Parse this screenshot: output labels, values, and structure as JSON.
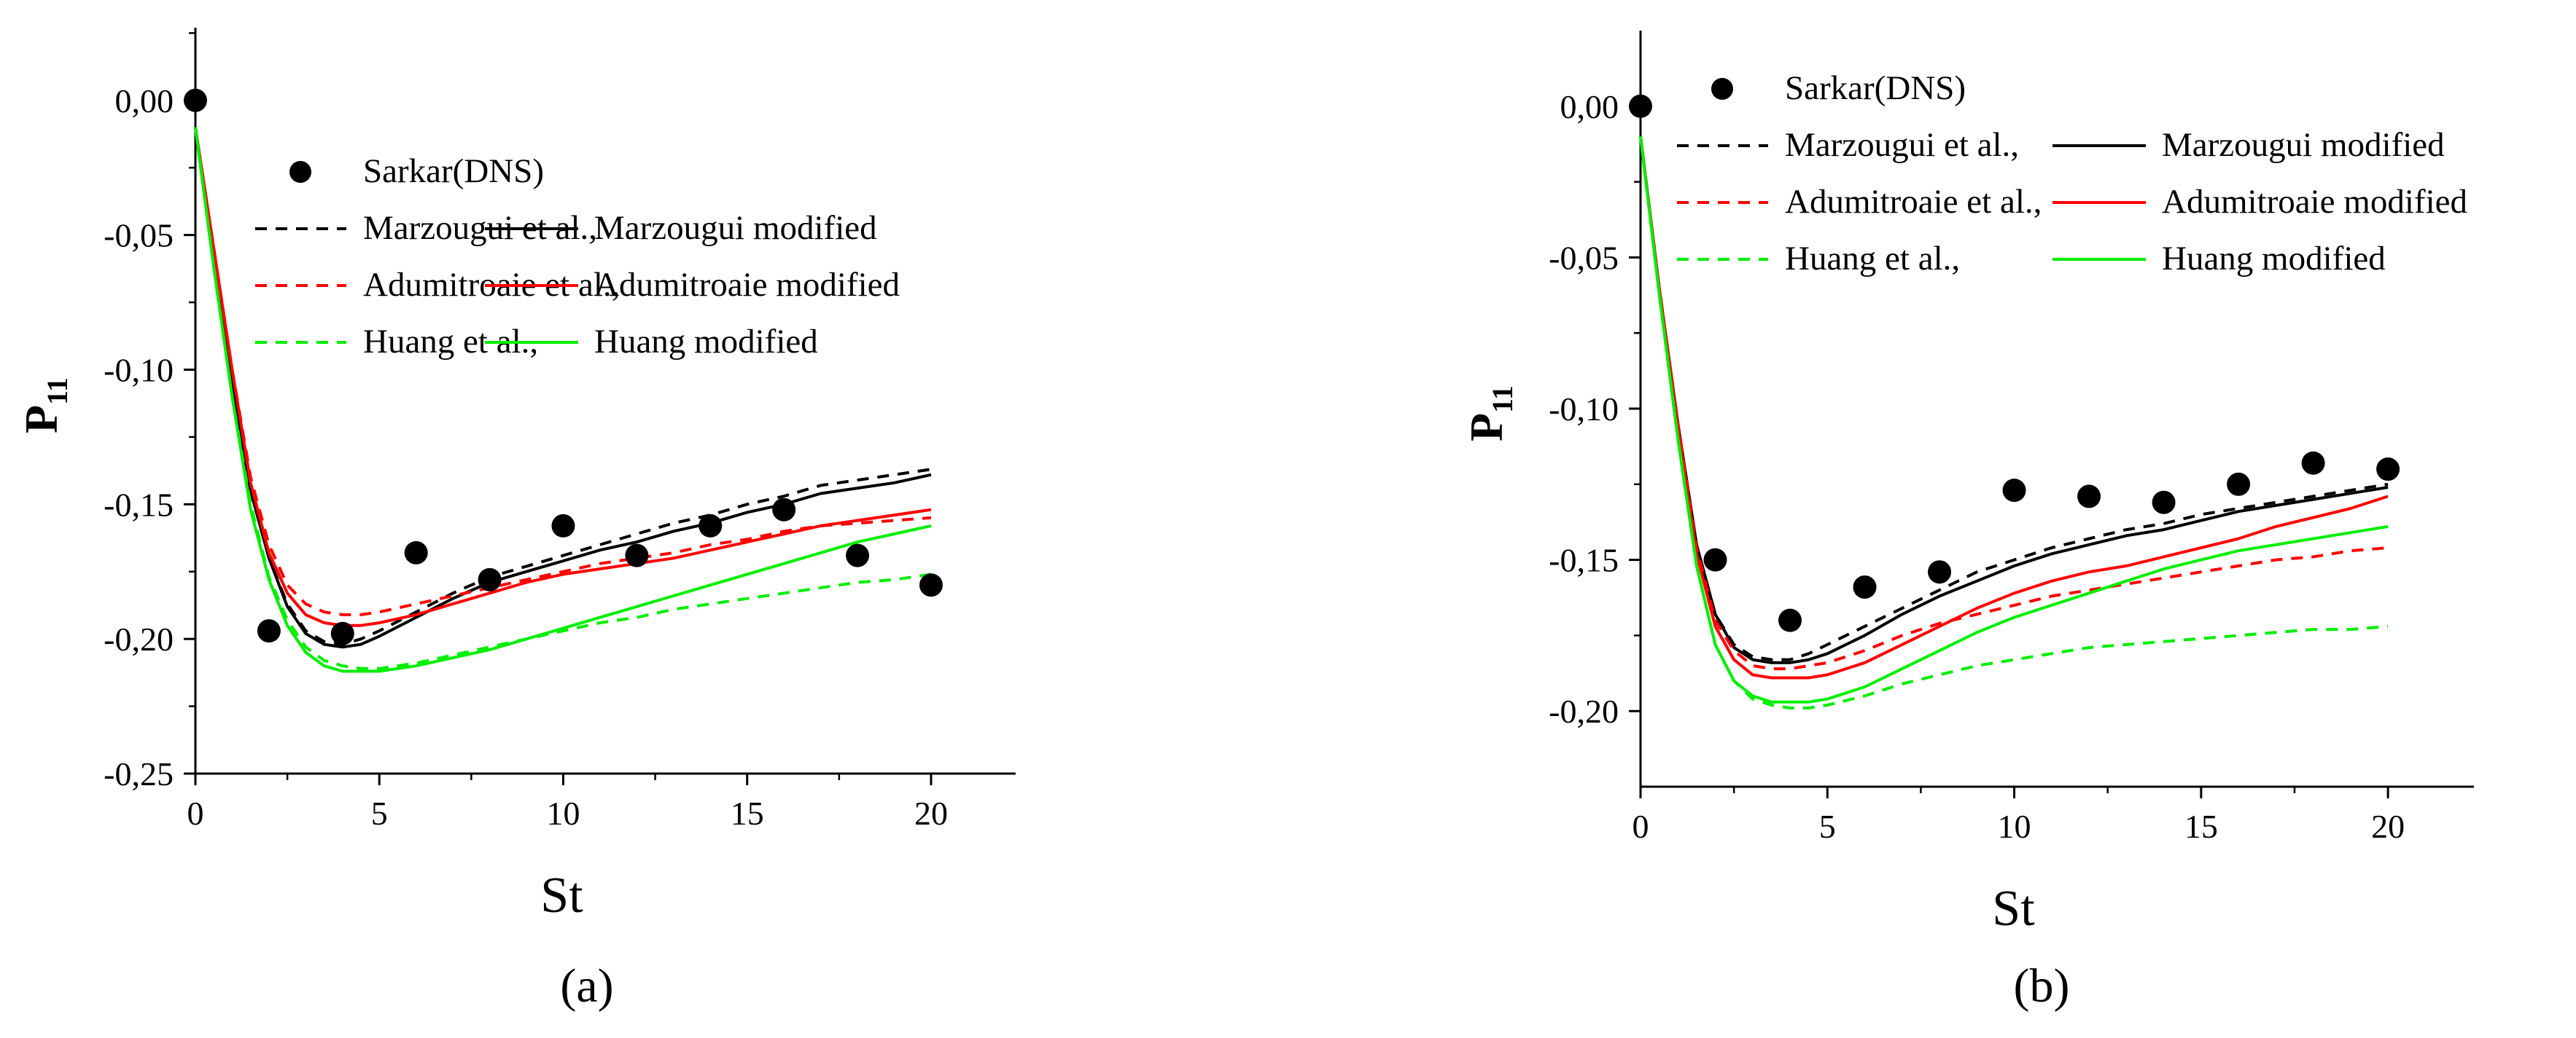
{
  "figure": {
    "captions": [
      "(a)",
      "(b)"
    ]
  },
  "chart_data": [
    {
      "type": "line",
      "panel": "(a)",
      "xlabel": "St",
      "ylabel": "P",
      "ylabel_sub": "11",
      "xlim": [
        0,
        22.3
      ],
      "ylim": [
        -0.25,
        0.027
      ],
      "xticks": [
        0,
        5,
        10,
        15,
        20
      ],
      "xtick_labels": [
        "0",
        "5",
        "10",
        "15",
        "20"
      ],
      "yticks": [
        0,
        -0.05,
        -0.1,
        -0.15,
        -0.2,
        -0.25
      ],
      "ytick_labels": [
        "0,00",
        "-0,05",
        "-0,10",
        "-0,15",
        "-0,20",
        "-0,25"
      ],
      "legend": {
        "placement": "upper-center",
        "entries": [
          [
            "Sarkar(DNS)"
          ],
          [
            "Marzougui et al.,",
            "Marzougui modified"
          ],
          [
            "Adumitroaie et al.,",
            "Adumitroaie modified"
          ],
          [
            "Huang et al.,",
            "Huang modified"
          ]
        ]
      },
      "scatter": {
        "name": "Sarkar(DNS)",
        "color": "#000000",
        "x": [
          0,
          2,
          4,
          6,
          8,
          10,
          12,
          14,
          16,
          18,
          20
        ],
        "y": [
          0.0,
          -0.197,
          -0.198,
          -0.168,
          -0.178,
          -0.158,
          -0.169,
          -0.158,
          -0.152,
          -0.169,
          -0.18
        ]
      },
      "series": [
        {
          "name": "Marzougui et al.,",
          "color": "#000000",
          "dash": true,
          "x": [
            0,
            0.5,
            1,
            1.5,
            2,
            2.5,
            3,
            3.5,
            4,
            4.5,
            5,
            6,
            7,
            8,
            9,
            10,
            11,
            12,
            13,
            14,
            15,
            16,
            17,
            18,
            19,
            20
          ],
          "y": [
            -0.01,
            -0.06,
            -0.105,
            -0.145,
            -0.17,
            -0.187,
            -0.197,
            -0.201,
            -0.202,
            -0.2,
            -0.197,
            -0.19,
            -0.183,
            -0.177,
            -0.173,
            -0.169,
            -0.165,
            -0.161,
            -0.157,
            -0.154,
            -0.15,
            -0.147,
            -0.143,
            -0.141,
            -0.139,
            -0.137
          ]
        },
        {
          "name": "Marzougui modified",
          "color": "#000000",
          "dash": false,
          "x": [
            0,
            0.5,
            1,
            1.5,
            2,
            2.5,
            3,
            3.5,
            4,
            4.5,
            5,
            6,
            7,
            8,
            9,
            10,
            11,
            12,
            13,
            14,
            15,
            16,
            17,
            18,
            19,
            20
          ],
          "y": [
            -0.01,
            -0.06,
            -0.105,
            -0.145,
            -0.17,
            -0.188,
            -0.198,
            -0.202,
            -0.203,
            -0.202,
            -0.199,
            -0.192,
            -0.185,
            -0.179,
            -0.175,
            -0.171,
            -0.167,
            -0.164,
            -0.16,
            -0.157,
            -0.153,
            -0.15,
            -0.146,
            -0.144,
            -0.142,
            -0.139
          ]
        },
        {
          "name": "Adumitroaie et al.,",
          "color": "#ff0000",
          "dash": true,
          "x": [
            0,
            0.5,
            1,
            1.5,
            2,
            2.5,
            3,
            3.5,
            4,
            4.5,
            5,
            6,
            7,
            8,
            9,
            10,
            11,
            12,
            13,
            14,
            15,
            16,
            17,
            18,
            19,
            20
          ],
          "y": [
            -0.01,
            -0.055,
            -0.1,
            -0.14,
            -0.165,
            -0.18,
            -0.187,
            -0.19,
            -0.191,
            -0.191,
            -0.19,
            -0.187,
            -0.184,
            -0.181,
            -0.178,
            -0.175,
            -0.172,
            -0.17,
            -0.168,
            -0.165,
            -0.163,
            -0.16,
            -0.158,
            -0.157,
            -0.156,
            -0.155
          ]
        },
        {
          "name": "Adumitroaie modified",
          "color": "#ff0000",
          "dash": false,
          "x": [
            0,
            0.5,
            1,
            1.5,
            2,
            2.5,
            3,
            3.5,
            4,
            4.5,
            5,
            6,
            7,
            8,
            9,
            10,
            11,
            12,
            13,
            14,
            15,
            16,
            17,
            18,
            19,
            20
          ],
          "y": [
            -0.01,
            -0.055,
            -0.1,
            -0.142,
            -0.168,
            -0.183,
            -0.191,
            -0.194,
            -0.195,
            -0.195,
            -0.194,
            -0.191,
            -0.187,
            -0.183,
            -0.179,
            -0.176,
            -0.174,
            -0.172,
            -0.17,
            -0.167,
            -0.164,
            -0.161,
            -0.158,
            -0.156,
            -0.154,
            -0.152
          ]
        },
        {
          "name": "Huang et al.,",
          "color": "#00ee00",
          "dash": true,
          "x": [
            0,
            0.5,
            1,
            1.5,
            2,
            2.5,
            3,
            3.5,
            4,
            4.5,
            5,
            6,
            7,
            8,
            9,
            10,
            11,
            12,
            13,
            14,
            15,
            16,
            17,
            18,
            19,
            20
          ],
          "y": [
            -0.01,
            -0.062,
            -0.11,
            -0.15,
            -0.177,
            -0.193,
            -0.203,
            -0.208,
            -0.21,
            -0.211,
            -0.211,
            -0.209,
            -0.206,
            -0.203,
            -0.2,
            -0.197,
            -0.194,
            -0.192,
            -0.189,
            -0.187,
            -0.185,
            -0.183,
            -0.181,
            -0.179,
            -0.178,
            -0.176
          ]
        },
        {
          "name": "Huang modified",
          "color": "#00ee00",
          "dash": false,
          "x": [
            0,
            0.5,
            1,
            1.5,
            2,
            2.5,
            3,
            3.5,
            4,
            4.5,
            5,
            6,
            7,
            8,
            9,
            10,
            11,
            12,
            13,
            14,
            15,
            16,
            17,
            18,
            19,
            20
          ],
          "y": [
            -0.01,
            -0.062,
            -0.11,
            -0.152,
            -0.178,
            -0.195,
            -0.205,
            -0.21,
            -0.212,
            -0.212,
            -0.212,
            -0.21,
            -0.207,
            -0.204,
            -0.2,
            -0.196,
            -0.192,
            -0.188,
            -0.184,
            -0.18,
            -0.176,
            -0.172,
            -0.168,
            -0.164,
            -0.161,
            -0.158
          ]
        }
      ]
    },
    {
      "type": "line",
      "panel": "(b)",
      "xlabel": "St",
      "ylabel": "P",
      "ylabel_sub": "11",
      "xlim": [
        0,
        22.3
      ],
      "ylim": [
        -0.225,
        0.025
      ],
      "xticks": [
        0,
        5,
        10,
        15,
        20
      ],
      "xtick_labels": [
        "0",
        "5",
        "10",
        "15",
        "20"
      ],
      "yticks": [
        0,
        -0.05,
        -0.1,
        -0.15,
        -0.2
      ],
      "ytick_labels": [
        "0,00",
        "-0,05",
        "-0,10",
        "-0,15",
        "-0,20"
      ],
      "legend": {
        "placement": "top-center",
        "entries": [
          [
            "Sarkar(DNS)"
          ],
          [
            "Marzougui et al.,",
            "Marzougui modified"
          ],
          [
            "Adumitroaie et al.,",
            "Adumitroaie modified"
          ],
          [
            "Huang et al.,",
            "Huang modified"
          ]
        ]
      },
      "scatter": {
        "name": "Sarkar(DNS)",
        "color": "#000000",
        "x": [
          0,
          2,
          4,
          6,
          8,
          10,
          12,
          14,
          16,
          18,
          20
        ],
        "y": [
          0.0,
          -0.15,
          -0.17,
          -0.159,
          -0.154,
          -0.127,
          -0.129,
          -0.131,
          -0.125,
          -0.118,
          -0.12
        ]
      },
      "series": [
        {
          "name": "Marzougui et al.,",
          "color": "#000000",
          "dash": true,
          "x": [
            0,
            0.5,
            1,
            1.5,
            2,
            2.5,
            3,
            3.5,
            4,
            4.5,
            5,
            6,
            7,
            8,
            9,
            10,
            11,
            12,
            13,
            14,
            15,
            16,
            17,
            18,
            19,
            20
          ],
          "y": [
            -0.01,
            -0.06,
            -0.105,
            -0.145,
            -0.168,
            -0.178,
            -0.182,
            -0.183,
            -0.183,
            -0.181,
            -0.178,
            -0.172,
            -0.166,
            -0.16,
            -0.154,
            -0.15,
            -0.146,
            -0.143,
            -0.14,
            -0.138,
            -0.135,
            -0.133,
            -0.131,
            -0.129,
            -0.127,
            -0.125
          ]
        },
        {
          "name": "Marzougui modified",
          "color": "#000000",
          "dash": false,
          "x": [
            0,
            0.5,
            1,
            1.5,
            2,
            2.5,
            3,
            3.5,
            4,
            4.5,
            5,
            6,
            7,
            8,
            9,
            10,
            11,
            12,
            13,
            14,
            15,
            16,
            17,
            18,
            19,
            20
          ],
          "y": [
            -0.01,
            -0.06,
            -0.105,
            -0.145,
            -0.168,
            -0.179,
            -0.183,
            -0.184,
            -0.184,
            -0.183,
            -0.181,
            -0.175,
            -0.168,
            -0.162,
            -0.157,
            -0.152,
            -0.148,
            -0.145,
            -0.142,
            -0.14,
            -0.137,
            -0.134,
            -0.132,
            -0.13,
            -0.128,
            -0.126
          ]
        },
        {
          "name": "Adumitroaie et al.,",
          "color": "#ff0000",
          "dash": true,
          "x": [
            0,
            0.5,
            1,
            1.5,
            2,
            2.5,
            3,
            3.5,
            4,
            4.5,
            5,
            6,
            7,
            8,
            9,
            10,
            11,
            12,
            13,
            14,
            15,
            16,
            17,
            18,
            19,
            20
          ],
          "y": [
            -0.01,
            -0.06,
            -0.105,
            -0.146,
            -0.17,
            -0.18,
            -0.185,
            -0.186,
            -0.186,
            -0.185,
            -0.184,
            -0.18,
            -0.175,
            -0.171,
            -0.168,
            -0.165,
            -0.162,
            -0.16,
            -0.158,
            -0.156,
            -0.154,
            -0.152,
            -0.15,
            -0.149,
            -0.147,
            -0.146
          ]
        },
        {
          "name": "Adumitroaie modified",
          "color": "#ff0000",
          "dash": false,
          "x": [
            0,
            0.5,
            1,
            1.5,
            2,
            2.5,
            3,
            3.5,
            4,
            4.5,
            5,
            6,
            7,
            8,
            9,
            10,
            11,
            12,
            13,
            14,
            15,
            16,
            17,
            18,
            19,
            20
          ],
          "y": [
            -0.01,
            -0.06,
            -0.106,
            -0.148,
            -0.172,
            -0.183,
            -0.188,
            -0.189,
            -0.189,
            -0.189,
            -0.188,
            -0.184,
            -0.178,
            -0.172,
            -0.166,
            -0.161,
            -0.157,
            -0.154,
            -0.152,
            -0.149,
            -0.146,
            -0.143,
            -0.139,
            -0.136,
            -0.133,
            -0.129
          ]
        },
        {
          "name": "Huang et al.,",
          "color": "#00ee00",
          "dash": true,
          "x": [
            0,
            0.5,
            1,
            1.5,
            2,
            2.5,
            3,
            3.5,
            4,
            4.5,
            5,
            6,
            7,
            8,
            9,
            10,
            11,
            12,
            13,
            14,
            15,
            16,
            17,
            18,
            19,
            20
          ],
          "y": [
            -0.01,
            -0.062,
            -0.11,
            -0.152,
            -0.178,
            -0.19,
            -0.196,
            -0.198,
            -0.199,
            -0.199,
            -0.198,
            -0.195,
            -0.191,
            -0.188,
            -0.185,
            -0.183,
            -0.181,
            -0.179,
            -0.178,
            -0.177,
            -0.176,
            -0.175,
            -0.174,
            -0.173,
            -0.173,
            -0.172
          ]
        },
        {
          "name": "Huang modified",
          "color": "#00ee00",
          "dash": false,
          "x": [
            0,
            0.5,
            1,
            1.5,
            2,
            2.5,
            3,
            3.5,
            4,
            4.5,
            5,
            6,
            7,
            8,
            9,
            10,
            11,
            12,
            13,
            14,
            15,
            16,
            17,
            18,
            19,
            20
          ],
          "y": [
            -0.01,
            -0.062,
            -0.11,
            -0.152,
            -0.178,
            -0.19,
            -0.195,
            -0.197,
            -0.197,
            -0.197,
            -0.196,
            -0.192,
            -0.186,
            -0.18,
            -0.174,
            -0.169,
            -0.165,
            -0.161,
            -0.157,
            -0.153,
            -0.15,
            -0.147,
            -0.145,
            -0.143,
            -0.141,
            -0.139
          ]
        }
      ]
    }
  ]
}
